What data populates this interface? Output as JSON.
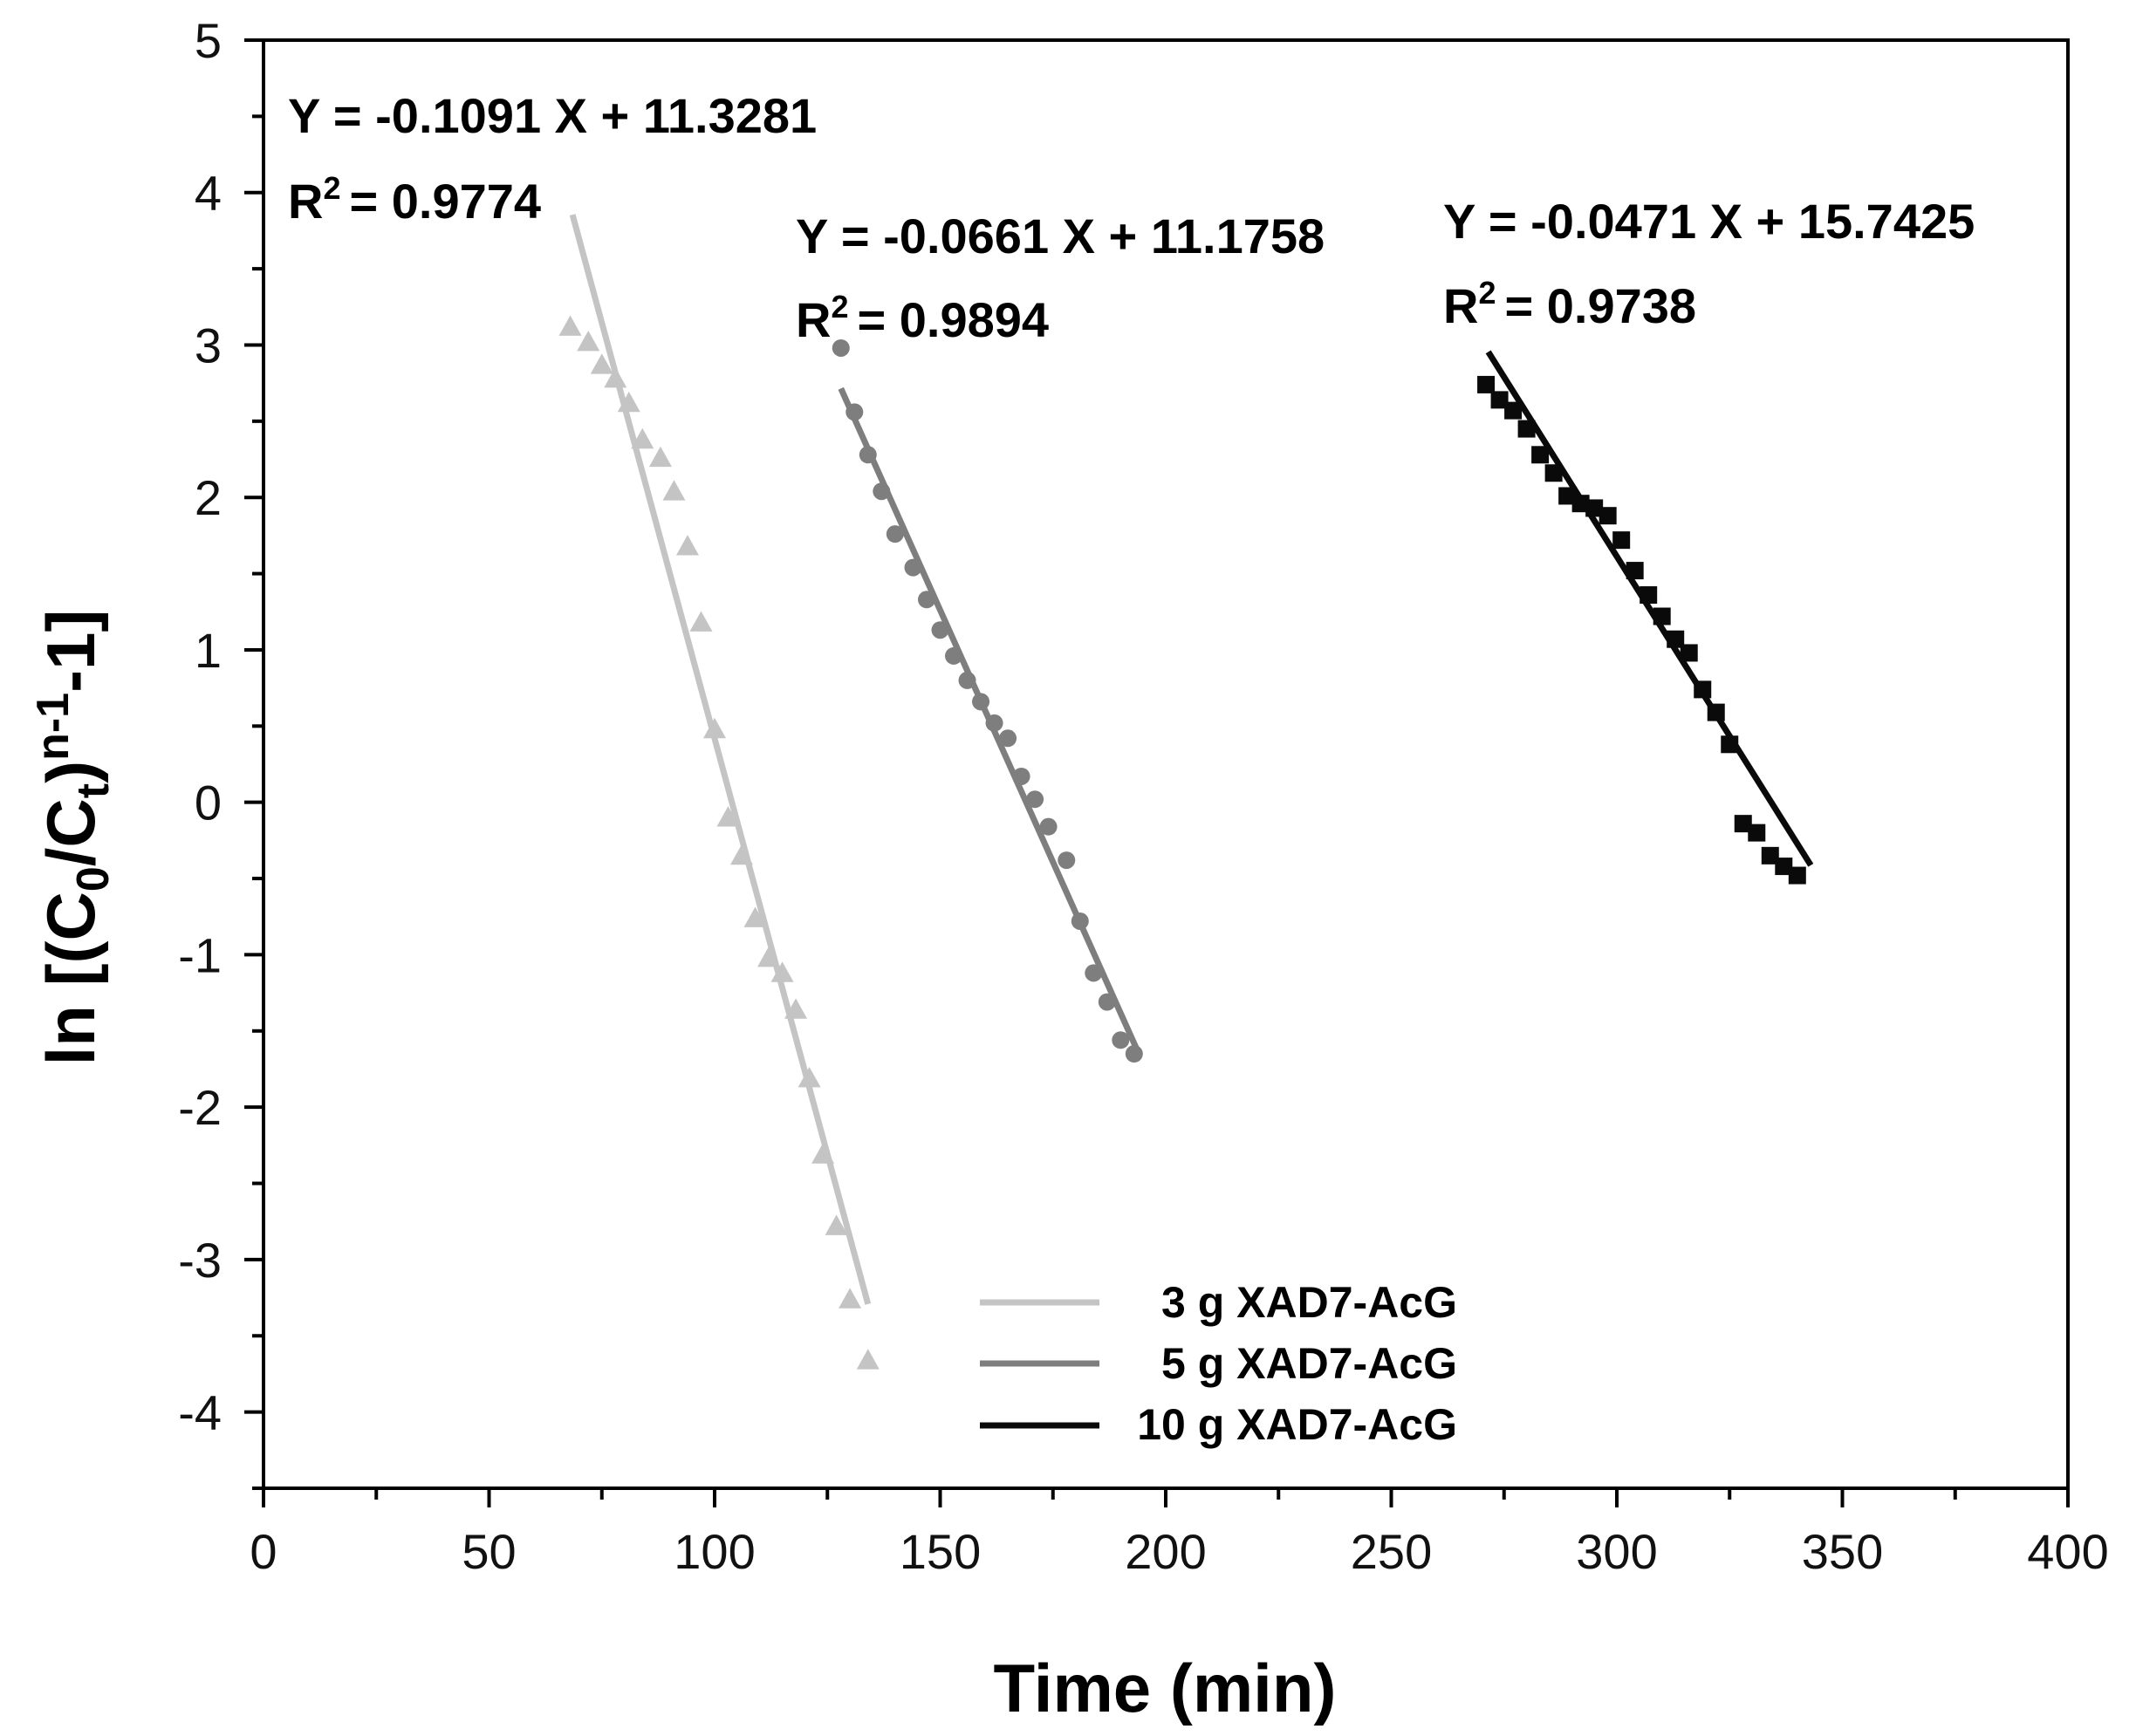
{
  "chart_data": {
    "type": "scatter",
    "xlabel": "Time (min)",
    "ylabel": {
      "parts": [
        "ln [(C",
        "0",
        "/C",
        "t",
        ")",
        "n-1",
        "-1]"
      ]
    },
    "xlim": [
      0,
      400
    ],
    "ylim": [
      -4.5,
      5
    ],
    "xticks": [
      0,
      50,
      100,
      150,
      200,
      250,
      300,
      350,
      400
    ],
    "yticks": [
      5,
      4,
      3,
      2,
      1,
      0,
      -1,
      -2,
      -3,
      -4
    ],
    "grid": false,
    "legend_position": "bottom-center",
    "series": [
      {
        "name": "3 g XAD7-AcG",
        "color": "#c4c4c4",
        "marker": "triangle",
        "fit": {
          "x_range": [
            68.5,
            134
          ],
          "slope": -0.1091,
          "intercept": 11.3281
        },
        "equation": "Y = -0.1091 X + 11.3281",
        "r2_value": "= 0.9774",
        "points": [
          [
            68,
            3.12
          ],
          [
            72,
            3.02
          ],
          [
            75,
            2.87
          ],
          [
            78,
            2.78
          ],
          [
            81,
            2.62
          ],
          [
            84,
            2.38
          ],
          [
            88,
            2.26
          ],
          [
            91,
            2.04
          ],
          [
            94,
            1.68
          ],
          [
            97,
            1.18
          ],
          [
            100,
            0.48
          ],
          [
            103,
            -0.1
          ],
          [
            106,
            -0.35
          ],
          [
            109,
            -0.76
          ],
          [
            112,
            -1.02
          ],
          [
            115,
            -1.12
          ],
          [
            118,
            -1.36
          ],
          [
            121,
            -1.81
          ],
          [
            124,
            -2.31
          ],
          [
            127,
            -2.78
          ],
          [
            130,
            -3.26
          ],
          [
            134,
            -3.66
          ]
        ]
      },
      {
        "name": "5 g XAD7-AcG",
        "color": "#7e7e7e",
        "marker": "circle",
        "fit": {
          "x_range": [
            128,
            194
          ],
          "slope": -0.0661,
          "intercept": 11.1758
        },
        "equation": "Y = -0.0661 X + 11.1758",
        "r2_value": "= 0.9894",
        "points": [
          [
            128,
            2.98
          ],
          [
            131,
            2.56
          ],
          [
            134,
            2.28
          ],
          [
            137,
            2.04
          ],
          [
            140,
            1.76
          ],
          [
            144,
            1.54
          ],
          [
            147,
            1.33
          ],
          [
            150,
            1.13
          ],
          [
            153,
            0.96
          ],
          [
            156,
            0.8
          ],
          [
            159,
            0.66
          ],
          [
            162,
            0.52
          ],
          [
            165,
            0.42
          ],
          [
            168,
            0.17
          ],
          [
            171,
            0.02
          ],
          [
            174,
            -0.16
          ],
          [
            178,
            -0.38
          ],
          [
            181,
            -0.78
          ],
          [
            184,
            -1.12
          ],
          [
            187,
            -1.31
          ],
          [
            190,
            -1.56
          ],
          [
            193,
            -1.65
          ]
        ]
      },
      {
        "name": "10 g XAD7-AcG",
        "color": "#0a0a0a",
        "marker": "square",
        "fit": {
          "x_range": [
            271.5,
            343
          ],
          "slope": -0.0471,
          "intercept": 15.7425
        },
        "equation": "Y = -0.0471 X + 15.7425",
        "r2_value": "= 0.9738",
        "points": [
          [
            271,
            2.74
          ],
          [
            274,
            2.64
          ],
          [
            277,
            2.57
          ],
          [
            280,
            2.45
          ],
          [
            283,
            2.28
          ],
          [
            286,
            2.16
          ],
          [
            289,
            2.01
          ],
          [
            292,
            1.96
          ],
          [
            295,
            1.93
          ],
          [
            298,
            1.88
          ],
          [
            301,
            1.72
          ],
          [
            304,
            1.52
          ],
          [
            307,
            1.36
          ],
          [
            310,
            1.22
          ],
          [
            313,
            1.07
          ],
          [
            316,
            0.98
          ],
          [
            319,
            0.74
          ],
          [
            322,
            0.59
          ],
          [
            325,
            0.38
          ],
          [
            328,
            -0.14
          ],
          [
            331,
            -0.2
          ],
          [
            334,
            -0.35
          ],
          [
            337,
            -0.42
          ],
          [
            340,
            -0.48
          ]
        ]
      }
    ]
  }
}
